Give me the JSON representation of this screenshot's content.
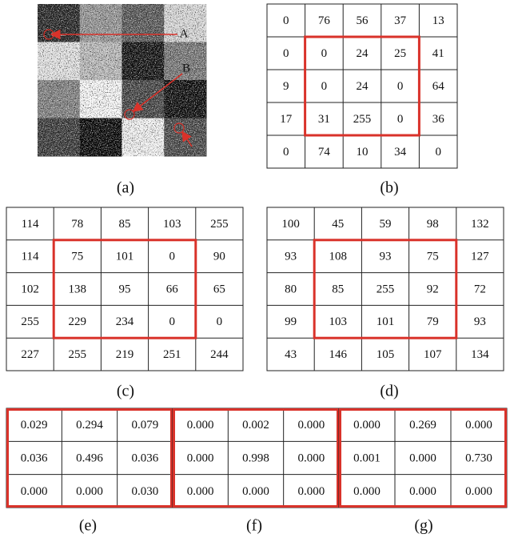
{
  "panels": [
    {
      "label": "(a)",
      "markers": [
        "A",
        "B"
      ]
    },
    {
      "label": "(b)",
      "rows": [
        [
          0,
          76,
          56,
          37,
          13
        ],
        [
          0,
          0,
          24,
          25,
          41
        ],
        [
          9,
          0,
          24,
          0,
          64
        ],
        [
          17,
          31,
          255,
          0,
          36
        ],
        [
          0,
          74,
          10,
          34,
          0
        ]
      ]
    },
    {
      "label": "(c)",
      "rows": [
        [
          114,
          78,
          85,
          103,
          255
        ],
        [
          114,
          75,
          101,
          0,
          90
        ],
        [
          102,
          138,
          95,
          66,
          65
        ],
        [
          255,
          229,
          234,
          0,
          0
        ],
        [
          227,
          255,
          219,
          251,
          244
        ]
      ]
    },
    {
      "label": "(d)",
      "rows": [
        [
          100,
          45,
          59,
          98,
          132
        ],
        [
          93,
          108,
          93,
          75,
          127
        ],
        [
          80,
          85,
          255,
          92,
          72
        ],
        [
          99,
          103,
          101,
          79,
          93
        ],
        [
          43,
          146,
          105,
          107,
          134
        ]
      ]
    },
    {
      "label": "(e)",
      "rows": [
        [
          "0.029",
          "0.294",
          "0.079"
        ],
        [
          "0.036",
          "0.496",
          "0.036"
        ],
        [
          "0.000",
          "0.000",
          "0.030"
        ]
      ]
    },
    {
      "label": "(f)",
      "rows": [
        [
          "0.000",
          "0.002",
          "0.000"
        ],
        [
          "0.000",
          "0.998",
          "0.000"
        ],
        [
          "0.000",
          "0.000",
          "0.000"
        ]
      ]
    },
    {
      "label": "(g)",
      "rows": [
        [
          "0.000",
          "0.269",
          "0.000"
        ],
        [
          "0.001",
          "0.000",
          "0.730"
        ],
        [
          "0.000",
          "0.000",
          "0.000"
        ]
      ]
    }
  ]
}
